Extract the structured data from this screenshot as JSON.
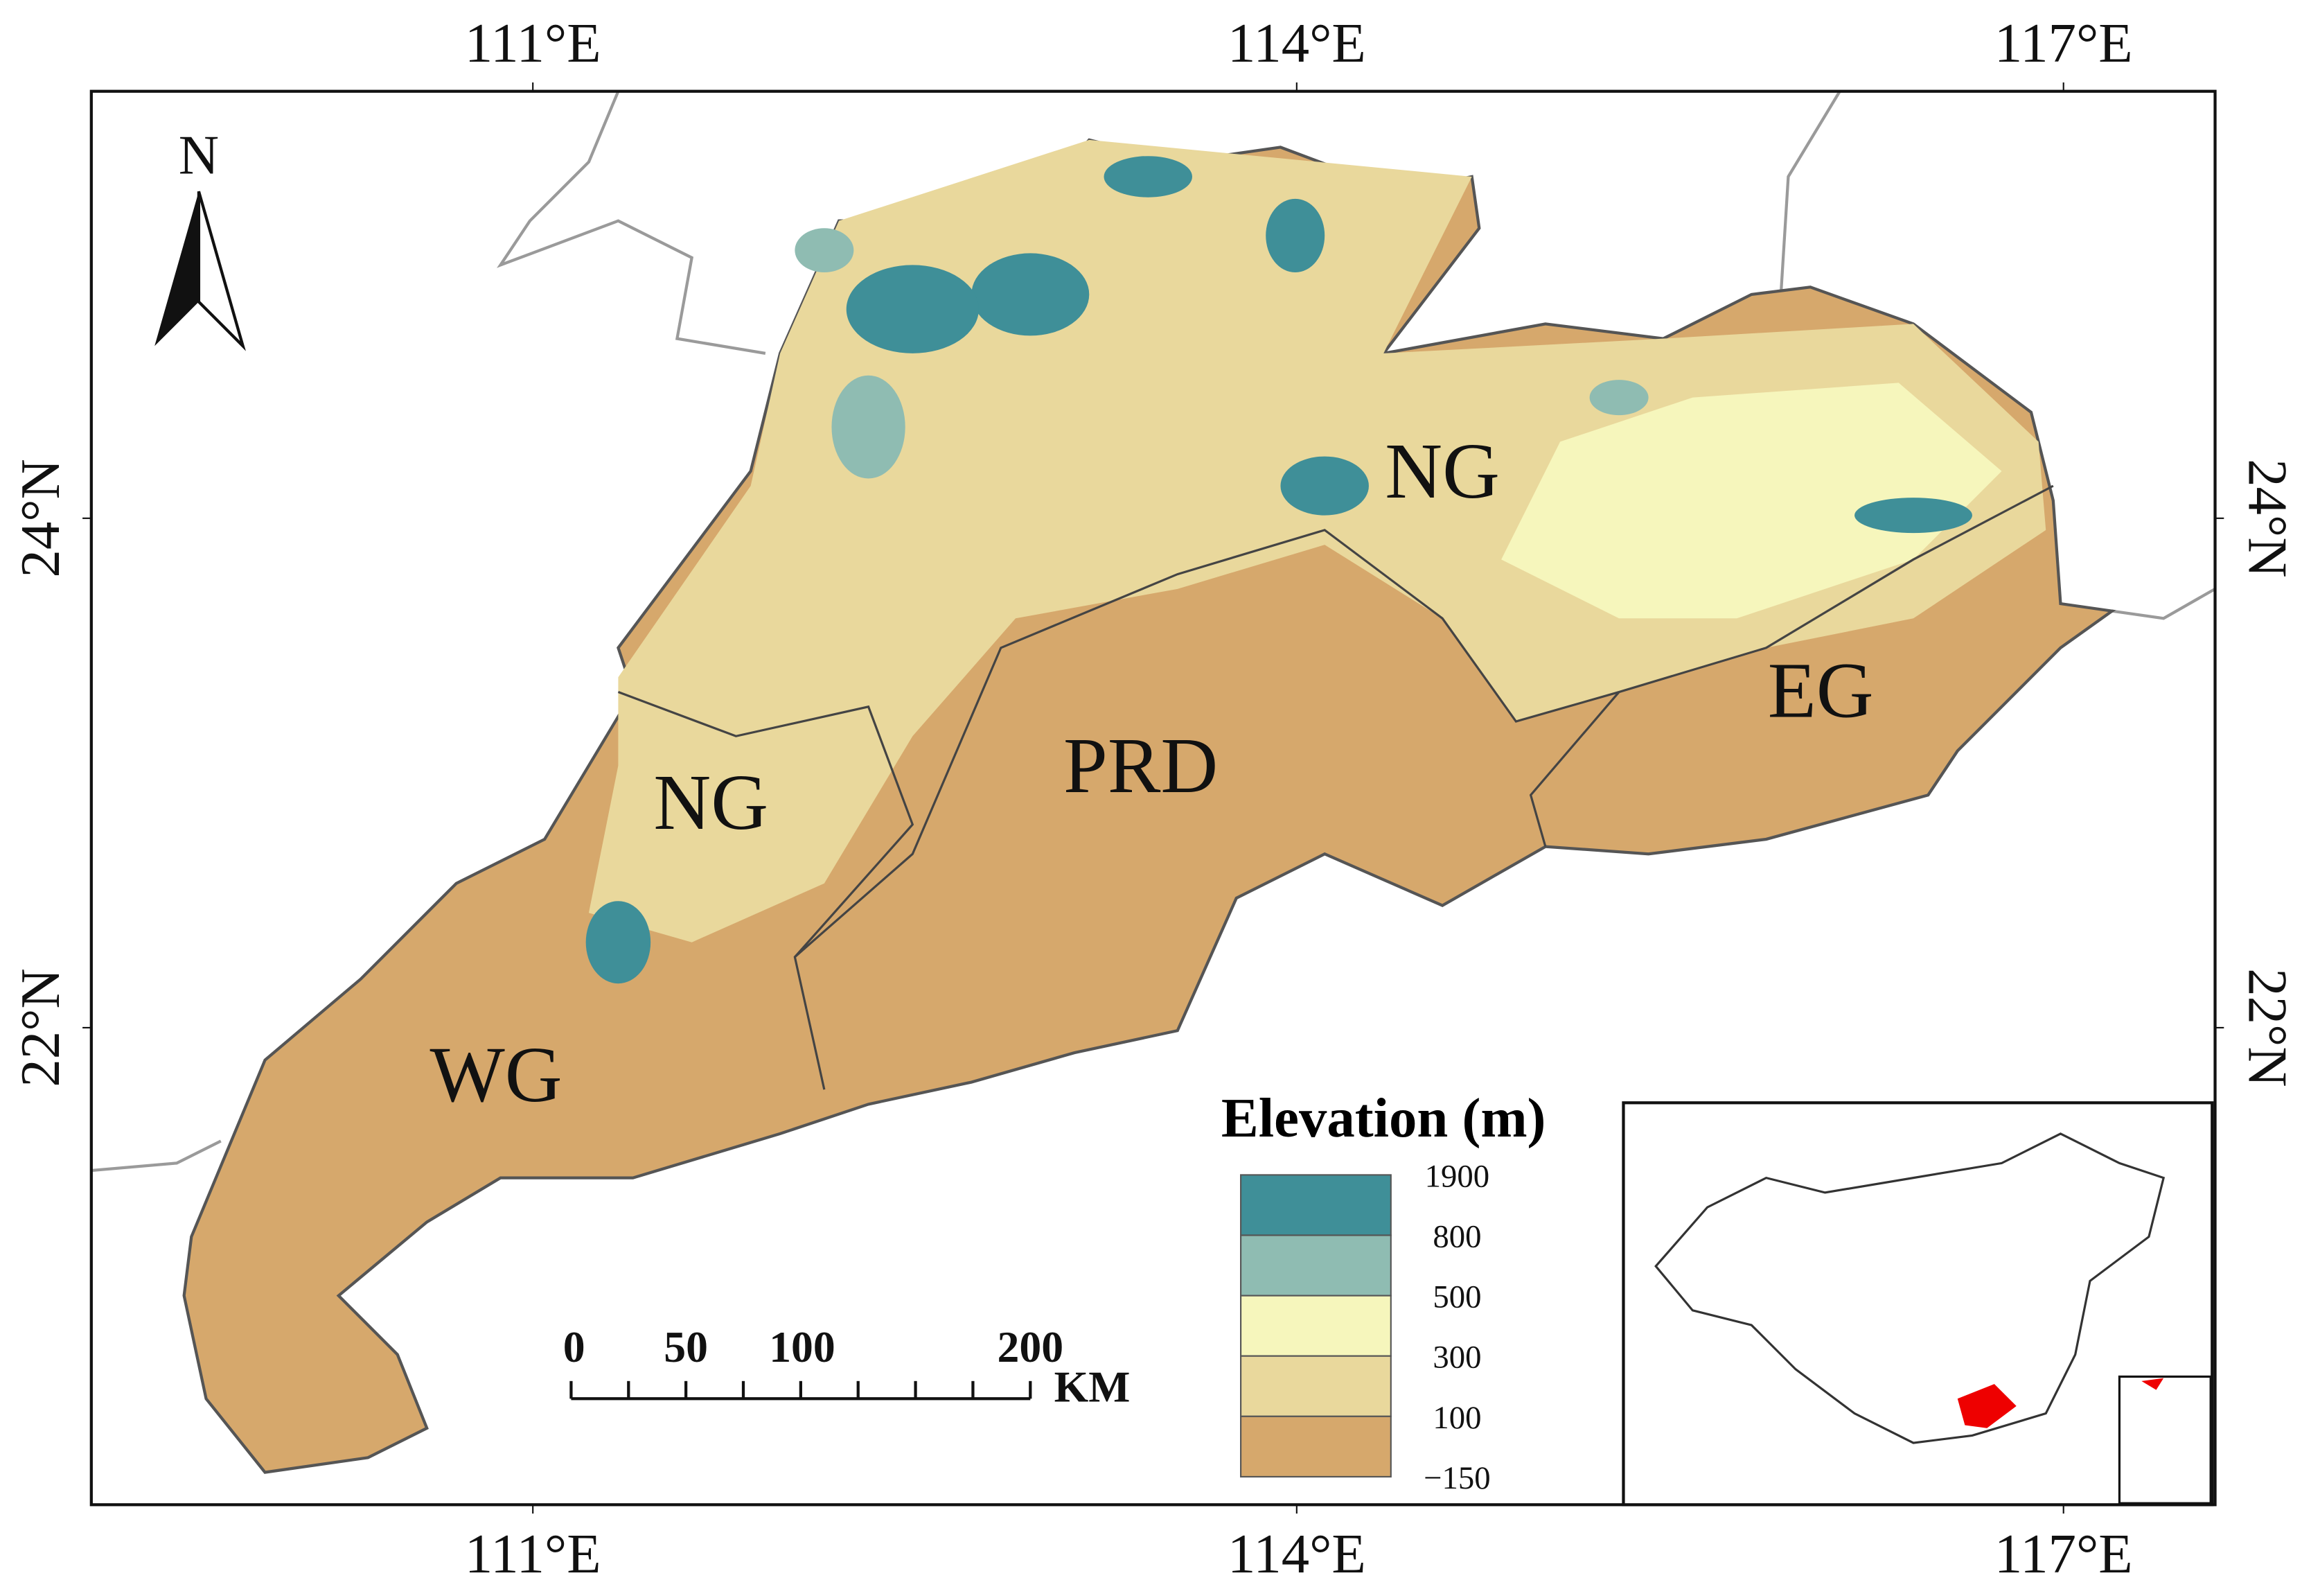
{
  "axes": {
    "top": [
      "111°E",
      "114°E",
      "117°E"
    ],
    "bottom": [
      "111°E",
      "114°E",
      "117°E"
    ],
    "left": [
      "24°N",
      "22°N"
    ],
    "right": [
      "24°N",
      "22°N"
    ]
  },
  "north_arrow": "N",
  "regions": [
    "NG",
    "NG",
    "PRD",
    "EG",
    "WG"
  ],
  "scale_bar": {
    "ticks": [
      "0",
      "50",
      "100",
      "200"
    ],
    "unit": "KM"
  },
  "legend": {
    "title": "Elevation (m)",
    "breaks": [
      "1900",
      "800",
      "500",
      "300",
      "100",
      "−150"
    ],
    "colors": [
      "#3f8f98",
      "#8fbcb2",
      "#f6f6bc",
      "#e9d89c",
      "#d6a86c"
    ]
  }
}
